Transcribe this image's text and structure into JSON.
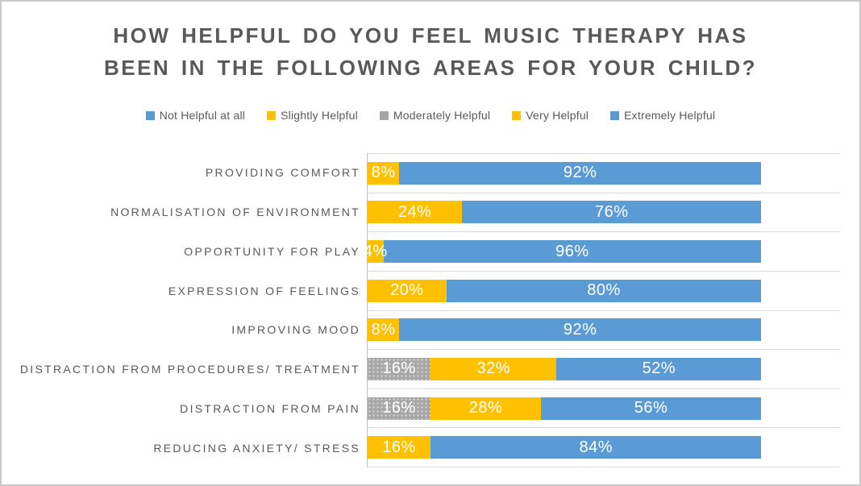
{
  "chart_data": {
    "type": "bar",
    "variant": "stacked-horizontal-percent",
    "title": "HOW HELPFUL DO YOU FEEL MUSIC THERAPY HAS BEEN IN THE FOLLOWING AREAS FOR YOUR CHILD?",
    "title_lines": [
      "HOW HELPFUL DO YOU FEEL MUSIC THERAPY HAS",
      "BEEN IN THE FOLLOWING AREAS FOR YOUR CHILD?"
    ],
    "legend_position": "top",
    "xlim": [
      0,
      120
    ],
    "grid": "horizontal-category-lines",
    "axis_tick_labels_visible": false,
    "data_label_format": "{value}%",
    "categories": [
      "PROVIDING COMFORT",
      "NORMALISATION OF ENVIRONMENT",
      "OPPORTUNITY FOR PLAY",
      "EXPRESSION OF FEELINGS",
      "IMPROVING MOOD",
      "DISTRACTION FROM PROCEDURES/ TREATMENT",
      "DISTRACTION FROM PAIN",
      "REDUCING ANXIETY/ STRESS"
    ],
    "series": [
      {
        "name": "Not Helpful at all",
        "color": "#5B9BD5",
        "pattern": "dots",
        "values": [
          0,
          0,
          0,
          0,
          0,
          0,
          0,
          0
        ]
      },
      {
        "name": "Slightly Helpful",
        "color": "#FFC000",
        "pattern": "dots",
        "values": [
          0,
          0,
          0,
          0,
          0,
          0,
          0,
          0
        ]
      },
      {
        "name": "Moderately Helpful",
        "color": "#A6A6A6",
        "pattern": "dots-faint",
        "values": [
          0,
          0,
          0,
          0,
          0,
          16,
          16,
          0
        ]
      },
      {
        "name": "Very Helpful",
        "color": "#FFC000",
        "pattern": "solid",
        "values": [
          8,
          24,
          4,
          20,
          8,
          32,
          28,
          16
        ]
      },
      {
        "name": "Extremely Helpful",
        "color": "#5B9BD5",
        "pattern": "solid",
        "values": [
          92,
          76,
          96,
          80,
          92,
          52,
          56,
          84
        ]
      }
    ],
    "legend": [
      {
        "label": "Not Helpful at all",
        "color": "#5B9BD5",
        "swatch_pattern": "dots"
      },
      {
        "label": "Slightly Helpful",
        "color": "#FFC000",
        "swatch_pattern": "dots"
      },
      {
        "label": "Moderately Helpful",
        "color": "#A6A6A6",
        "swatch_pattern": "solid"
      },
      {
        "label": "Very Helpful",
        "color": "#FFC000",
        "swatch_pattern": "solid"
      },
      {
        "label": "Extremely Helpful",
        "color": "#5B9BD5",
        "swatch_pattern": "solid"
      }
    ]
  },
  "colors": {
    "title": "#595959",
    "category_label": "#595959",
    "legend_text": "#595959",
    "gridline": "#D9D9D9",
    "axis_line": "#BFBFBF",
    "bar_label": "#FFFFFF",
    "background": "#FFFFFF",
    "outer_border": "#C9C9C9"
  }
}
